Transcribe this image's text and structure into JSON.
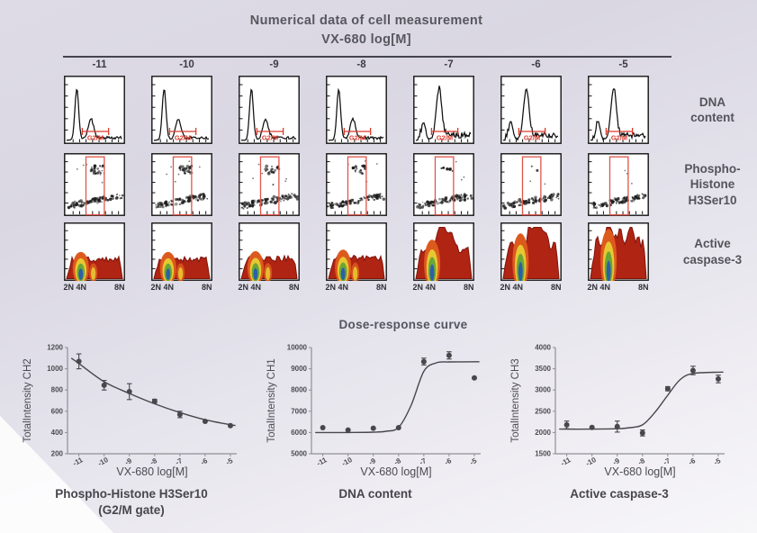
{
  "header": {
    "title_line1": "Numerical data of cell measurement",
    "title_line2": "VX-680  log[M]"
  },
  "panel_grid": {
    "concentrations": [
      "-11",
      "-10",
      "-9",
      "-8",
      "-7",
      "-6",
      "-5"
    ],
    "row_labels": [
      [
        "DNA",
        "content"
      ],
      [
        "Phospho-",
        "Histone",
        "H3Ser10"
      ],
      [
        "Active",
        "caspase-3"
      ]
    ],
    "gate_label": "G2/M",
    "axis_label_left": "2N 4N",
    "axis_label_right": "8N",
    "column_states": [
      {
        "conc": "-11",
        "dna": "g1",
        "mitotic": 1.0,
        "apoptosis": 0.16
      },
      {
        "conc": "-10",
        "dna": "g1",
        "mitotic": 1.0,
        "apoptosis": 0.16
      },
      {
        "conc": "-9",
        "dna": "g1",
        "mitotic": 0.9,
        "apoptosis": 0.18
      },
      {
        "conc": "-8",
        "dna": "g1",
        "mitotic": 0.6,
        "apoptosis": 0.22
      },
      {
        "conc": "-7",
        "dna": "g2",
        "mitotic": 0.25,
        "apoptosis": 0.5
      },
      {
        "conc": "-6",
        "dna": "g2",
        "mitotic": 0.07,
        "apoptosis": 0.68
      },
      {
        "conc": "-5",
        "dna": "g2",
        "mitotic": 0.05,
        "apoptosis": 0.8
      }
    ]
  },
  "dose_section": {
    "title": "Dose-response curve"
  },
  "chart_data": [
    {
      "type": "scatter",
      "caption": "Phospho-Histone H3Ser10",
      "caption_line2": "(G2/M gate)",
      "ylabel": "TotalIntensity CH2",
      "xlabel": "VX-680 log[M]",
      "x": [
        -11,
        -10,
        -9,
        -8,
        -7,
        -6,
        -5
      ],
      "y": [
        1070,
        845,
        785,
        695,
        570,
        505,
        465
      ],
      "yerr": [
        70,
        45,
        75,
        18,
        30,
        15,
        12
      ],
      "ylim": [
        200,
        1200
      ],
      "yticks": [
        200,
        400,
        600,
        800,
        1000,
        1200
      ],
      "curve": [
        [
          -11.3,
          1100
        ],
        [
          -11,
          1050
        ],
        [
          -10,
          878
        ],
        [
          -9,
          768
        ],
        [
          -8,
          670
        ],
        [
          -7,
          588
        ],
        [
          -6,
          520
        ],
        [
          -5,
          473
        ],
        [
          -4.8,
          467
        ]
      ]
    },
    {
      "type": "scatter",
      "caption": "DNA content",
      "caption_line2": "",
      "ylabel": "TotalIntensity CH1",
      "xlabel": "VX-680 log[M]",
      "x": [
        -11,
        -10,
        -9,
        -8,
        -7,
        -6,
        -5
      ],
      "y": [
        6230,
        6120,
        6200,
        6230,
        9340,
        9630,
        8570
      ],
      "yerr": [
        50,
        40,
        45,
        50,
        160,
        170,
        60
      ],
      "ylim": [
        5000,
        10000
      ],
      "yticks": [
        5000,
        6000,
        7000,
        8000,
        9000,
        10000
      ],
      "curve": [
        [
          -11.3,
          6000
        ],
        [
          -10,
          6000
        ],
        [
          -9,
          6015
        ],
        [
          -8.5,
          6060
        ],
        [
          -8,
          6240
        ],
        [
          -7.5,
          7290
        ],
        [
          -7,
          8880
        ],
        [
          -6.5,
          9280
        ],
        [
          -6,
          9320
        ],
        [
          -5,
          9330
        ],
        [
          -4.8,
          9330
        ]
      ]
    },
    {
      "type": "scatter",
      "caption": "Active caspase-3",
      "caption_line2": "",
      "ylabel": "TotalIntensity CH3",
      "xlabel": "VX-680 log[M]",
      "x": [
        -11,
        -10,
        -9,
        -8,
        -7,
        -6,
        -5
      ],
      "y": [
        2180,
        2120,
        2140,
        1990,
        3030,
        3460,
        3260
      ],
      "yerr": [
        90,
        40,
        130,
        70,
        50,
        100,
        90
      ],
      "ylim": [
        1500,
        4000
      ],
      "yticks": [
        1500,
        2000,
        2500,
        3000,
        3500,
        4000
      ],
      "curve": [
        [
          -11.3,
          2080
        ],
        [
          -10,
          2080
        ],
        [
          -9,
          2090
        ],
        [
          -8.5,
          2115
        ],
        [
          -8,
          2180
        ],
        [
          -7.5,
          2480
        ],
        [
          -7,
          2880
        ],
        [
          -6.5,
          3250
        ],
        [
          -6,
          3390
        ],
        [
          -5,
          3420
        ],
        [
          -4.8,
          3420
        ]
      ]
    }
  ],
  "colors": {
    "gate_red": "#dd3a2c",
    "curve_gray": "#47474c",
    "axis_gray": "#8f8f96",
    "heat_palette": [
      "#b02413",
      "#dd5a1e",
      "#e7c832",
      "#6aa636",
      "#2d5fa8"
    ]
  }
}
